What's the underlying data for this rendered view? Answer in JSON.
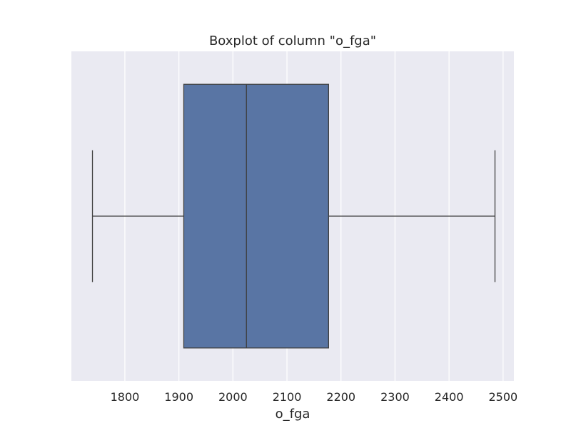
{
  "chart_data": {
    "type": "box",
    "title": "Boxplot of column \"o_fga\"",
    "xlabel": "o_fga",
    "ylabel": "",
    "xlim": [
      1701,
      2520
    ],
    "xticks": [
      1800,
      1900,
      2000,
      2100,
      2200,
      2300,
      2400,
      2500
    ],
    "grid": true,
    "box": {
      "whisker_low": 1740,
      "q1": 1909,
      "median": 2025,
      "q3": 2177,
      "whisker_high": 2485
    },
    "colors": {
      "background": "#eaeaf2",
      "grid": "#ffffff",
      "box_fill": "#5975a4",
      "line": "#3f3f3f"
    }
  }
}
